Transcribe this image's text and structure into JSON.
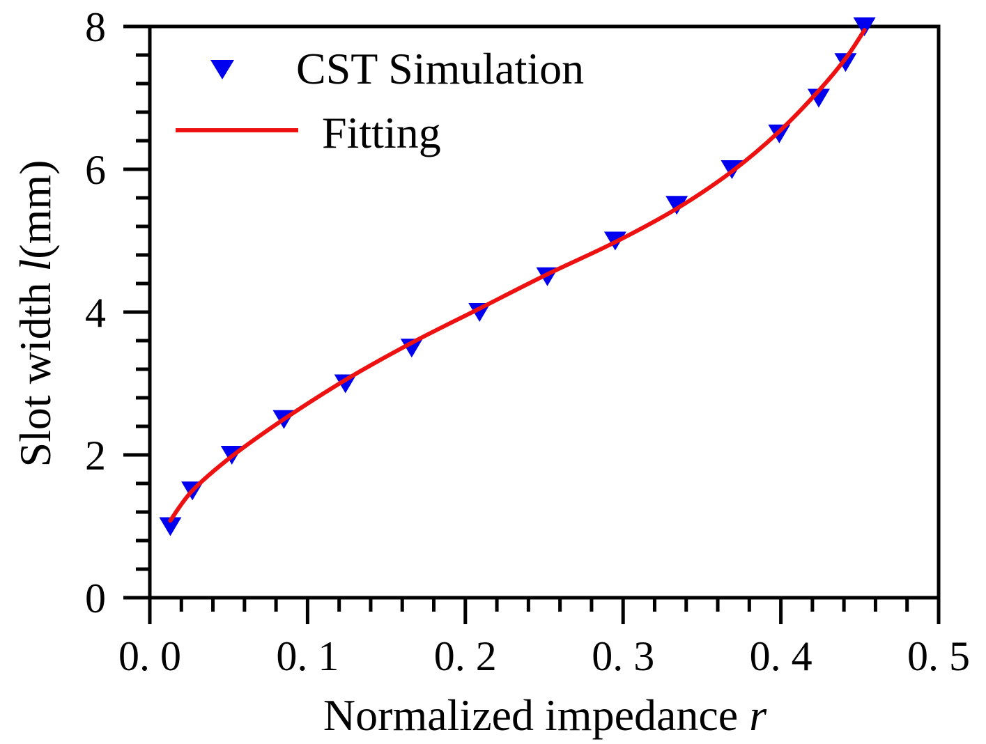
{
  "chart_data": {
    "type": "scatter",
    "title": "",
    "xlabel": "Normalized impedance",
    "xlabel_var": "r",
    "ylabel_prefix": "Slot width ",
    "ylabel_var": "l",
    "ylabel_suffix": "(mm)",
    "xlim": [
      0.0,
      0.5
    ],
    "ylim": [
      0,
      8
    ],
    "x_ticks": [
      0.0,
      0.1,
      0.2,
      0.3,
      0.4,
      0.5
    ],
    "x_tick_labels": [
      "0. 0",
      "0. 1",
      "0. 2",
      "0. 3",
      "0. 4",
      "0. 5"
    ],
    "y_ticks": [
      0,
      2,
      4,
      6,
      8
    ],
    "y_tick_labels": [
      "0",
      "2",
      "4",
      "6",
      "8"
    ],
    "grid": false,
    "legend_position": "top-left",
    "series": [
      {
        "name": "CST Simulation",
        "kind": "scatter",
        "marker": "down-triangle",
        "color": "#0000ee",
        "x": [
          0.013,
          0.027,
          0.052,
          0.085,
          0.124,
          0.166,
          0.209,
          0.252,
          0.295,
          0.334,
          0.369,
          0.399,
          0.424,
          0.441,
          0.453
        ],
        "y": [
          1.0,
          1.5,
          2.0,
          2.5,
          3.0,
          3.5,
          4.0,
          4.5,
          5.0,
          5.5,
          6.0,
          6.5,
          7.0,
          7.5,
          8.0
        ]
      },
      {
        "name": "Fitting",
        "kind": "line",
        "color": "#ee1111",
        "x": [
          0.013,
          0.027,
          0.052,
          0.085,
          0.124,
          0.166,
          0.209,
          0.252,
          0.295,
          0.334,
          0.369,
          0.399,
          0.424,
          0.441,
          0.453
        ],
        "y": [
          1.08,
          1.5,
          1.98,
          2.5,
          3.05,
          3.57,
          4.05,
          4.53,
          4.98,
          5.45,
          5.97,
          6.53,
          7.1,
          7.55,
          7.95
        ]
      }
    ]
  }
}
